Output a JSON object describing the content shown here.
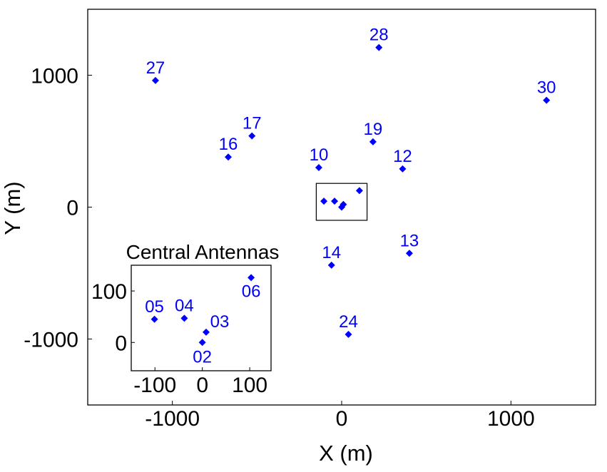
{
  "chart_data": [
    {
      "type": "scatter",
      "title": "",
      "xlabel": "X (m)",
      "ylabel": "Y (m)",
      "xlim": [
        -1500,
        1500
      ],
      "ylim": [
        -1500,
        1500
      ],
      "xticks": [
        -1000,
        0,
        1000
      ],
      "yticks": [
        -1000,
        0,
        1000
      ],
      "grid": false,
      "marker": "diamond",
      "color": "#0000ff",
      "series": [
        {
          "points": [
            {
              "label": "27",
              "x": -1100,
              "y": 960
            },
            {
              "label": "28",
              "x": 220,
              "y": 1210
            },
            {
              "label": "30",
              "x": 1210,
              "y": 810
            },
            {
              "label": "17",
              "x": -530,
              "y": 540
            },
            {
              "label": "16",
              "x": -670,
              "y": 380
            },
            {
              "label": "19",
              "x": 185,
              "y": 495
            },
            {
              "label": "10",
              "x": -135,
              "y": 300
            },
            {
              "label": "12",
              "x": 360,
              "y": 290
            },
            {
              "label": "13",
              "x": 400,
              "y": -350
            },
            {
              "label": "14",
              "x": -60,
              "y": -440
            },
            {
              "label": "24",
              "x": 40,
              "y": -965
            },
            {
              "label": "",
              "x": -105,
              "y": 45
            },
            {
              "label": "",
              "x": -42,
              "y": 45
            },
            {
              "label": "",
              "x": 0,
              "y": 0
            },
            {
              "label": "",
              "x": 10,
              "y": 20
            },
            {
              "label": "",
              "x": 105,
              "y": 125
            }
          ]
        }
      ],
      "highlight_box": {
        "x": [
          -150,
          150
        ],
        "y": [
          -100,
          180
        ]
      }
    },
    {
      "type": "scatter",
      "title": "Central Antennas",
      "xlim": [
        -150,
        145
      ],
      "ylim": [
        -55,
        150
      ],
      "xticks": [
        -100,
        0,
        100
      ],
      "yticks": [
        0,
        100
      ],
      "grid": false,
      "marker": "diamond",
      "color": "#0000ff",
      "series": [
        {
          "points": [
            {
              "label": "05",
              "x": -101,
              "y": 45
            },
            {
              "label": "04",
              "x": -38,
              "y": 47
            },
            {
              "label": "03",
              "x": 8,
              "y": 20
            },
            {
              "label": "02",
              "x": 0,
              "y": 0
            },
            {
              "label": "06",
              "x": 103,
              "y": 126
            }
          ]
        }
      ]
    }
  ],
  "colors": {
    "marker": "#0000ff",
    "axes": "#000000"
  }
}
